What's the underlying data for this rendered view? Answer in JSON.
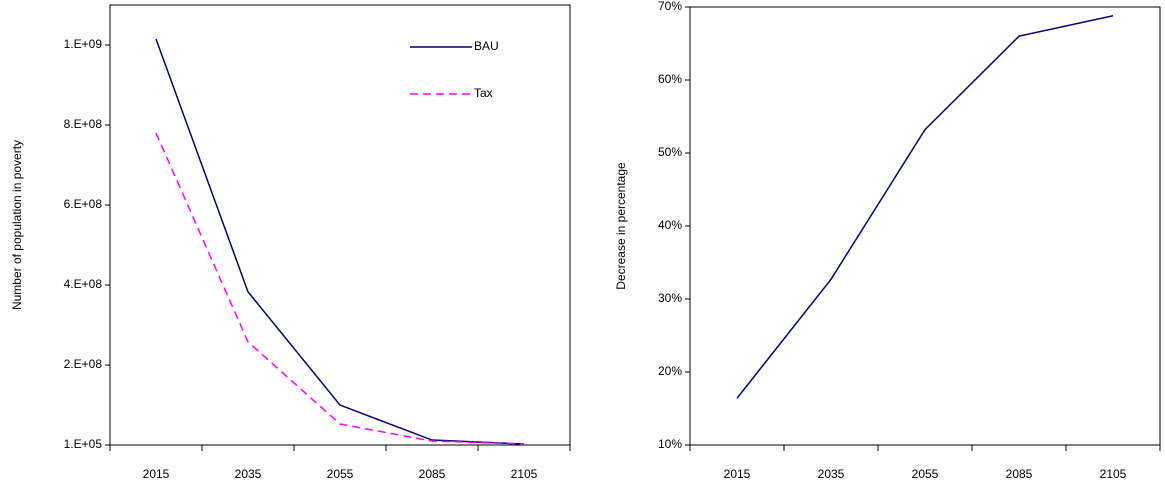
{
  "chart_data": [
    {
      "type": "line",
      "ylabel": "Number of population in poverty",
      "categories": [
        "2015",
        "2035",
        "2055",
        "2085",
        "2105"
      ],
      "series": [
        {
          "name": "BAU",
          "color": "#000080",
          "dash": false,
          "values": [
            1015000000,
            383000000,
            100000000,
            12500000,
            2500000
          ]
        },
        {
          "name": "Tax",
          "color": "#ff00ff",
          "dash": true,
          "values": [
            780000000,
            258000000,
            52500000,
            10000000,
            2500000
          ]
        }
      ],
      "ylim": [
        100000,
        1100000000
      ],
      "yticks": [
        {
          "value": 100000,
          "label": "1.E+05"
        },
        {
          "value": 200000000,
          "label": "2.E+08"
        },
        {
          "value": 400000000,
          "label": "4.E+08"
        },
        {
          "value": 600000000,
          "label": "6.E+08"
        },
        {
          "value": 800000000,
          "label": "8.E+08"
        },
        {
          "value": 1000000000,
          "label": "1.E+09"
        }
      ],
      "legend": "top-right"
    },
    {
      "type": "line",
      "ylabel": "Decrease in percentage",
      "categories": [
        "2015",
        "2035",
        "2055",
        "2085",
        "2105"
      ],
      "color": "#000080",
      "values": [
        16.4,
        32.7,
        53.2,
        66.0,
        68.8
      ],
      "ylim": [
        10,
        70
      ],
      "yticks": [
        {
          "value": 10,
          "label": "10%"
        },
        {
          "value": 20,
          "label": "20%"
        },
        {
          "value": 30,
          "label": "30%"
        },
        {
          "value": 40,
          "label": "40%"
        },
        {
          "value": 50,
          "label": "50%"
        },
        {
          "value": 60,
          "label": "60%"
        },
        {
          "value": 70,
          "label": "70%"
        }
      ]
    }
  ]
}
